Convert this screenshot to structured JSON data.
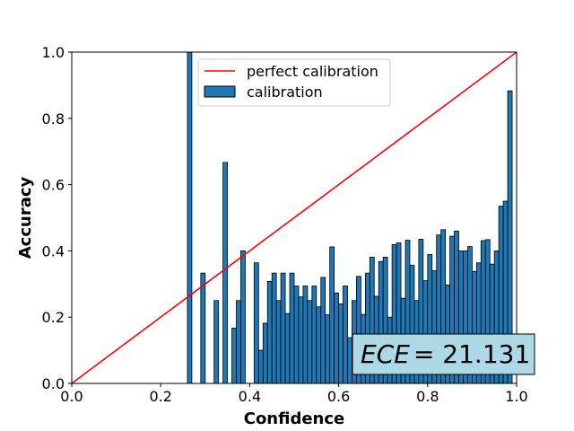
{
  "chart_data": {
    "type": "bar",
    "xlabel": "Confidence",
    "ylabel": "Accuracy",
    "xlim": [
      0,
      1
    ],
    "ylim": [
      0,
      1
    ],
    "x_ticks": [
      "0.0",
      "0.2",
      "0.4",
      "0.6",
      "0.8",
      "1.0"
    ],
    "y_ticks": [
      "0.0",
      "0.2",
      "0.4",
      "0.6",
      "0.8",
      "1.0"
    ],
    "bin_width": 0.01,
    "legend": {
      "placement": "upper-left",
      "entries": [
        {
          "label": "perfect calibration",
          "kind": "line"
        },
        {
          "label": "calibration",
          "kind": "bar"
        }
      ]
    },
    "reference_line": {
      "name": "perfect calibration",
      "x": [
        0,
        1
      ],
      "y": [
        0,
        1
      ]
    },
    "annotation": {
      "italic": "ECE",
      "rest": "= 21.131"
    },
    "colors": {
      "bar_fill": "#1f77b4",
      "bar_edge": "#000000",
      "line": "#ff0000",
      "annotation_bg": "#add8e6"
    },
    "bins": [
      [
        0.265,
        1.0
      ],
      [
        0.295,
        0.333
      ],
      [
        0.325,
        0.25
      ],
      [
        0.345,
        0.667
      ],
      [
        0.365,
        0.167
      ],
      [
        0.375,
        0.25
      ],
      [
        0.385,
        0.4
      ],
      [
        0.415,
        0.364
      ],
      [
        0.425,
        0.1
      ],
      [
        0.435,
        0.182
      ],
      [
        0.445,
        0.308
      ],
      [
        0.455,
        0.333
      ],
      [
        0.465,
        0.25
      ],
      [
        0.475,
        0.333
      ],
      [
        0.485,
        0.211
      ],
      [
        0.495,
        0.333
      ],
      [
        0.505,
        0.294
      ],
      [
        0.515,
        0.261
      ],
      [
        0.525,
        0.294
      ],
      [
        0.535,
        0.25
      ],
      [
        0.545,
        0.294
      ],
      [
        0.555,
        0.231
      ],
      [
        0.565,
        0.32
      ],
      [
        0.575,
        0.207
      ],
      [
        0.585,
        0.412
      ],
      [
        0.595,
        0.273
      ],
      [
        0.605,
        0.24
      ],
      [
        0.615,
        0.294
      ],
      [
        0.625,
        0.138
      ],
      [
        0.635,
        0.25
      ],
      [
        0.645,
        0.323
      ],
      [
        0.655,
        0.208
      ],
      [
        0.665,
        0.333
      ],
      [
        0.675,
        0.381
      ],
      [
        0.685,
        0.263
      ],
      [
        0.695,
        0.368
      ],
      [
        0.705,
        0.381
      ],
      [
        0.715,
        0.2
      ],
      [
        0.725,
        0.419
      ],
      [
        0.735,
        0.424
      ],
      [
        0.745,
        0.257
      ],
      [
        0.755,
        0.432
      ],
      [
        0.765,
        0.357
      ],
      [
        0.775,
        0.25
      ],
      [
        0.785,
        0.435
      ],
      [
        0.795,
        0.31
      ],
      [
        0.805,
        0.389
      ],
      [
        0.815,
        0.34
      ],
      [
        0.825,
        0.448
      ],
      [
        0.835,
        0.464
      ],
      [
        0.845,
        0.297
      ],
      [
        0.855,
        0.444
      ],
      [
        0.865,
        0.46
      ],
      [
        0.875,
        0.4
      ],
      [
        0.885,
        0.4
      ],
      [
        0.895,
        0.413
      ],
      [
        0.905,
        0.338
      ],
      [
        0.915,
        0.364
      ],
      [
        0.925,
        0.431
      ],
      [
        0.935,
        0.434
      ],
      [
        0.945,
        0.36
      ],
      [
        0.955,
        0.4
      ],
      [
        0.965,
        0.535
      ],
      [
        0.975,
        0.55
      ],
      [
        0.985,
        0.883
      ]
    ]
  }
}
